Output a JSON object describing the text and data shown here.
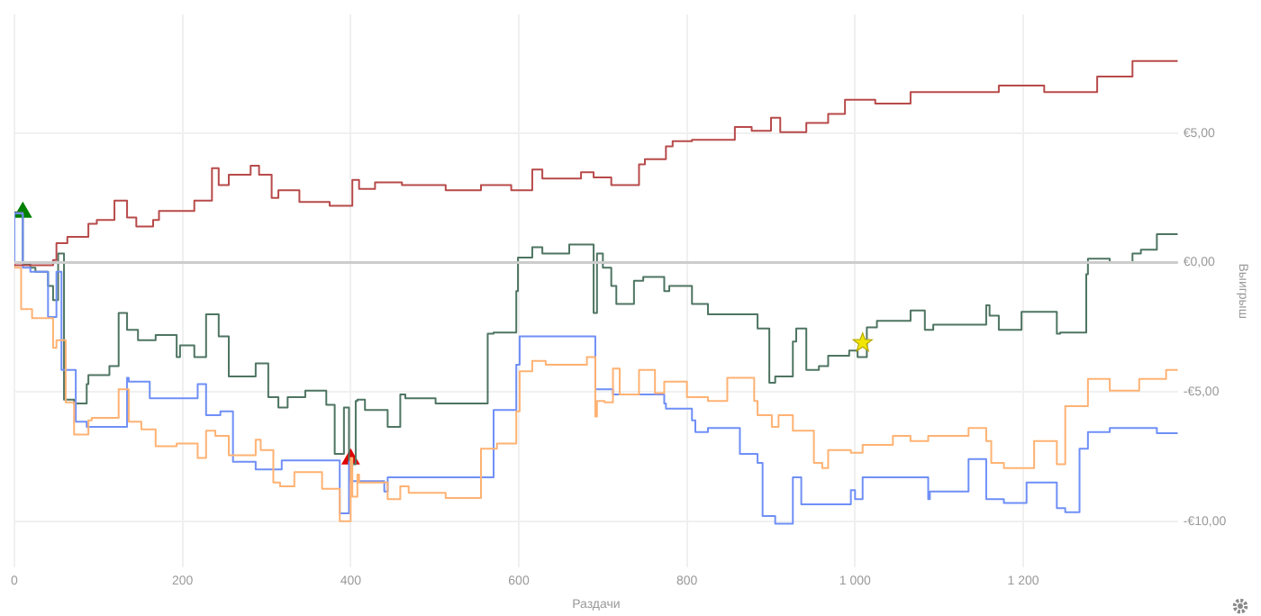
{
  "chart_data": {
    "type": "step",
    "xlabel": "Раздачи",
    "ylabel": "Выигрыш",
    "xlim": [
      0,
      1384
    ],
    "ylim": [
      -11.8,
      9.6
    ],
    "xticks": [
      0,
      200,
      400,
      600,
      800,
      {
        "value": 1000,
        "label": "1 000"
      },
      {
        "value": 1200,
        "label": "1 200"
      }
    ],
    "yticks": [
      {
        "value": -10,
        "label": "-€10,00"
      },
      {
        "value": -5,
        "label": "-€5,00"
      },
      {
        "value": 0,
        "label": "€0,00"
      },
      {
        "value": 5,
        "label": "€5,00"
      }
    ],
    "grid": true,
    "marker": "none",
    "ref_lines": [
      {
        "axis": "y",
        "value": 0,
        "color": "#cccccc"
      }
    ],
    "series": [
      {
        "color": "#b84a4a",
        "x": [
          0,
          46,
          50,
          63,
          88,
          98,
          119,
          134,
          145,
          165,
          172,
          214,
          235,
          243,
          255,
          281,
          291,
          306,
          314,
          339,
          375,
          402,
          410,
          429,
          461,
          513,
          555,
          591,
          616,
          628,
          674,
          689,
          710,
          743,
          750,
          775,
          783,
          806,
          857,
          877,
          900,
          911,
          942,
          968,
          988,
          1024,
          1066,
          1171,
          1225,
          1288,
          1330,
          1359,
          1376,
          1384
        ],
        "values": [
          0,
          -0.1,
          0.1,
          0.75,
          1.0,
          1.5,
          1.65,
          2.4,
          1.75,
          1.4,
          1.65,
          2.0,
          2.4,
          3.65,
          3.0,
          3.4,
          3.75,
          3.4,
          2.5,
          2.8,
          2.35,
          2.2,
          3.2,
          2.85,
          3.1,
          3.0,
          2.8,
          3.0,
          2.8,
          3.6,
          3.25,
          3.5,
          3.3,
          3.0,
          3.8,
          4.0,
          4.5,
          4.7,
          4.75,
          5.25,
          5.1,
          5.6,
          5.05,
          5.4,
          5.75,
          6.3,
          6.15,
          6.6,
          6.85,
          6.6,
          7.2,
          7.8,
          7.8,
          7.8
        ]
      },
      {
        "color": "#ffb273",
        "x": [
          0,
          8,
          21,
          46,
          50,
          61,
          71,
          88,
          92,
          124,
          136,
          151,
          168,
          193,
          218,
          228,
          239,
          255,
          287,
          293,
          308,
          316,
          333,
          366,
          387,
          390,
          400,
          402,
          408,
          410,
          444,
          459,
          469,
          513,
          555,
          574,
          597,
          601,
          616,
          632,
          681,
          691,
          693,
          702,
          712,
          720,
          743,
          762,
          773,
          800,
          825,
          848,
          880,
          884,
          901,
          909,
          926,
          951,
          961,
          968,
          995,
          1009,
          1045,
          1066,
          1087,
          1135,
          1156,
          1162,
          1177,
          1213,
          1240,
          1250,
          1277,
          1303,
          1338,
          1370,
          1376,
          1384
        ],
        "values": [
          0,
          -0.2,
          -1.8,
          -2.15,
          -3.3,
          -3.0,
          -5.4,
          -6.65,
          -6.1,
          -6.0,
          -4.9,
          -6.15,
          -6.45,
          -7.1,
          -7.0,
          -7.55,
          -6.5,
          -6.7,
          -7.45,
          -6.85,
          -7.25,
          -8.5,
          -8.65,
          -8.1,
          -8.75,
          -10.0,
          -10.0,
          -7.55,
          -9.05,
          -8.2,
          -8.5,
          -9.15,
          -8.65,
          -8.9,
          -9.1,
          -7.2,
          -7.0,
          -5.75,
          -4.2,
          -3.8,
          -3.95,
          -3.65,
          -5.95,
          -5.35,
          -5.4,
          -4.1,
          -5.1,
          -4.15,
          -5.05,
          -4.6,
          -5.2,
          -5.35,
          -4.45,
          -5.35,
          -5.9,
          -6.35,
          -5.9,
          -6.5,
          -7.75,
          -7.95,
          -7.25,
          -7.35,
          -7.05,
          -6.7,
          -6.9,
          -6.7,
          -6.4,
          -6.9,
          -7.75,
          -7.95,
          -6.9,
          -7.8,
          -5.55,
          -4.5,
          -4.95,
          -4.5,
          -4.15,
          -4.15
        ]
      },
      {
        "color": "#6f8ff7",
        "x": [
          0,
          10,
          19,
          40,
          50,
          56,
          73,
          86,
          94,
          134,
          136,
          161,
          191,
          218,
          228,
          245,
          260,
          287,
          318,
          371,
          387,
          392,
          398,
          400,
          408,
          440,
          444,
          465,
          570,
          572,
          597,
          601,
          616,
          691,
          695,
          712,
          723,
          773,
          775,
          806,
          810,
          825,
          863,
          884,
          890,
          905,
          926,
          936,
          957,
          995,
          1000,
          1009,
          1030,
          1087,
          1089,
          1135,
          1156,
          1177,
          1204,
          1240,
          1250,
          1267,
          1277,
          1303,
          1338,
          1359,
          1361,
          1384
        ],
        "values": [
          0,
          1.9,
          -0.2,
          -0.35,
          -2.1,
          -0.35,
          -4.15,
          -6.15,
          -6.35,
          -6.35,
          -4.45,
          -4.6,
          -5.25,
          -5.25,
          -4.7,
          -5.9,
          -5.75,
          -7.7,
          -8.0,
          -7.65,
          -7.65,
          -9.7,
          -9.7,
          -7.7,
          -8.45,
          -8.45,
          -8.85,
          -8.3,
          -8.3,
          -5.7,
          -5.7,
          -3.95,
          -2.85,
          -2.85,
          -4.9,
          -4.9,
          -5.1,
          -5.1,
          -5.45,
          -5.65,
          -6.1,
          -6.55,
          -6.4,
          -7.4,
          -7.75,
          -9.8,
          -10.1,
          -8.3,
          -9.35,
          -9.35,
          -8.8,
          -9.15,
          -8.3,
          -8.3,
          -9.15,
          -8.85,
          -7.6,
          -9.15,
          -9.3,
          -8.5,
          -9.5,
          -9.65,
          -7.2,
          -6.55,
          -6.4,
          -6.4,
          -6.6,
          -6.6
        ]
      },
      {
        "color": "#4e7562",
        "x": [
          0,
          10,
          19,
          25,
          40,
          46,
          52,
          59,
          71,
          86,
          88,
          113,
          124,
          134,
          147,
          168,
          193,
          197,
          214,
          228,
          243,
          255,
          287,
          302,
          314,
          325,
          346,
          371,
          381,
          392,
          398,
          406,
          408,
          417,
          444,
          459,
          465,
          501,
          563,
          570,
          597,
          599,
          616,
          628,
          660,
          689,
          693,
          700,
          710,
          716,
          737,
          748,
          773,
          779,
          806,
          825,
          884,
          898,
          905,
          926,
          930,
          942,
          957,
          968,
          993,
          1003,
          1014,
          1026,
          1066,
          1083,
          1093,
          1156,
          1160,
          1171,
          1198,
          1240,
          1244,
          1275,
          1277,
          1303,
          1330,
          1340,
          1359,
          1376,
          1384
        ],
        "values": [
          0,
          1.95,
          -0.05,
          -0.2,
          -0.35,
          -0.9,
          -1.45,
          0.35,
          -5.3,
          -5.45,
          -4.7,
          -4.35,
          -4.0,
          -1.95,
          -2.6,
          -3.0,
          -2.8,
          -3.65,
          -3.2,
          -3.65,
          -2.0,
          -2.85,
          -4.4,
          -3.9,
          -5.2,
          -5.6,
          -5.2,
          -4.95,
          -5.5,
          -7.4,
          -5.6,
          -7.8,
          -5.35,
          -5.3,
          -5.7,
          -6.35,
          -5.1,
          -5.25,
          -5.45,
          -2.75,
          -2.7,
          -1.1,
          0.2,
          0.6,
          0.35,
          0.7,
          -1.95,
          0.35,
          -0.2,
          -0.9,
          -1.6,
          -0.7,
          -0.55,
          -1.1,
          -0.9,
          -1.6,
          -2.0,
          -2.55,
          -4.65,
          -4.4,
          -3.05,
          -2.55,
          -4.15,
          -4.0,
          -3.6,
          -3.4,
          -3.65,
          -2.5,
          -2.25,
          -1.85,
          -2.6,
          -2.4,
          -1.65,
          -2.05,
          -2.6,
          -1.9,
          -2.75,
          -2.7,
          -0.45,
          0.15,
          0.0,
          0.35,
          0.5,
          1.1,
          1.1
        ]
      },
      {
        "type": "scatter",
        "marker": "triangle",
        "color": "#008000",
        "x": [
          10
        ],
        "values": [
          1.95
        ]
      },
      {
        "type": "scatter",
        "marker": "triangle",
        "color": "#e00000",
        "x": [
          400
        ],
        "values": [
          -7.6
        ]
      },
      {
        "type": "scatter",
        "marker": "star",
        "color": "#f2e600",
        "x": [
          1009
        ],
        "values": [
          -3.1
        ]
      }
    ]
  }
}
